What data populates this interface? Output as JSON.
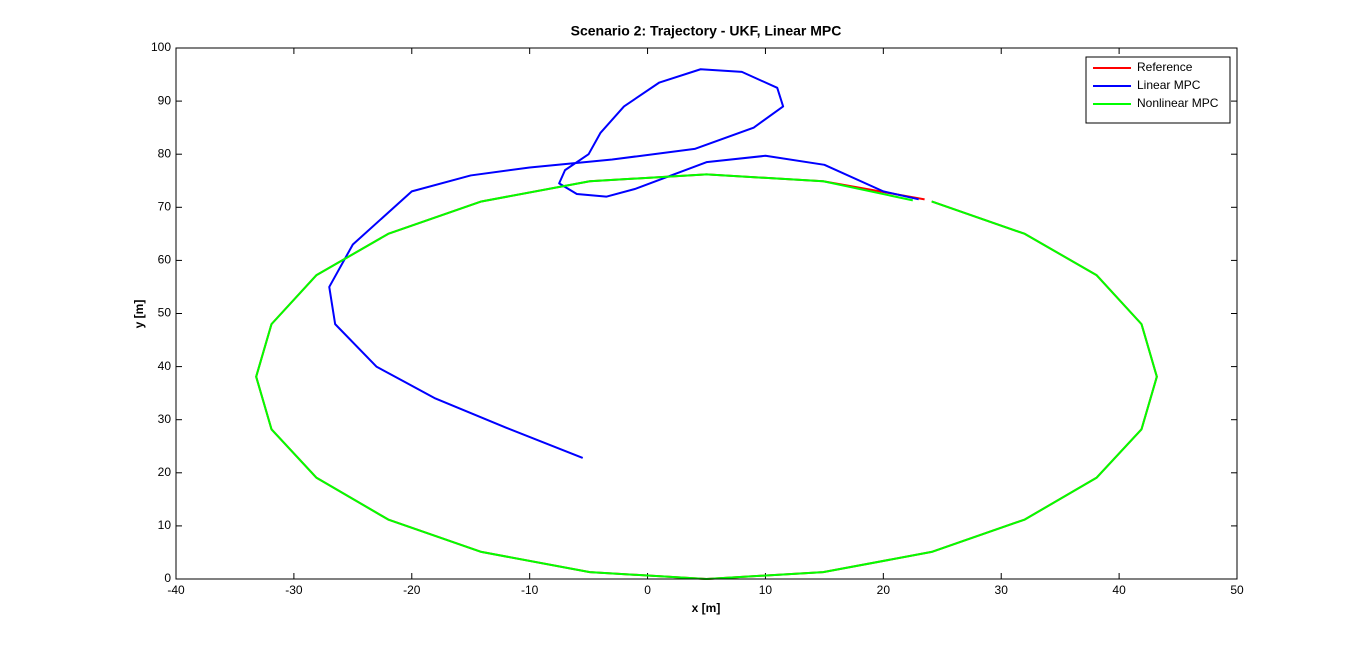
{
  "chart_data": {
    "type": "line",
    "title": "Scenario 2: Trajectory - UKF, Linear MPC",
    "x_label": "x [m]",
    "y_label": "y [m]",
    "xlim": [
      -40,
      50
    ],
    "xticks": [
      -40,
      -30,
      -20,
      -10,
      0,
      10,
      20,
      30,
      40,
      50
    ],
    "ylim": [
      0,
      100
    ],
    "yticks": [
      0,
      10,
      20,
      30,
      40,
      50,
      60,
      70,
      80,
      90,
      100
    ],
    "grid": false,
    "legend": "northeast",
    "series": [
      {
        "name": "Reference",
        "color": "#ff0000",
        "x": [
          23.5,
          14.9,
          5,
          -4.9,
          -14.1,
          -22.0,
          -28.1,
          -31.9,
          -33.2,
          -31.9,
          -28.1,
          -22.0,
          -14.1,
          -4.9,
          5,
          14.9,
          24.1,
          32.0,
          38.1,
          41.9,
          43.2,
          41.9,
          38.1,
          32.0,
          24.1
        ],
        "values": [
          71.5,
          74.9,
          76.2,
          74.9,
          71.1,
          65.0,
          57.2,
          48.0,
          38.1,
          28.2,
          19.1,
          11.2,
          5.1,
          1.3,
          0,
          1.3,
          5.1,
          11.2,
          19.1,
          28.2,
          38.1,
          48.0,
          57.2,
          65.0,
          71.1
        ]
      },
      {
        "name": "Linear MPC",
        "color": "#0000ff",
        "x": [
          23,
          20,
          15,
          10,
          5,
          2,
          -1,
          -3.5,
          -6,
          -7.5,
          -7,
          -5,
          -4,
          -2,
          1,
          4.5,
          8,
          11,
          11.5,
          9,
          4,
          -3,
          -10,
          -15,
          -20,
          -25,
          -27,
          -26.5,
          -23,
          -18,
          -12,
          -5.5
        ],
        "values": [
          71.5,
          73,
          78,
          79.7,
          78.5,
          76,
          73.5,
          72,
          72.5,
          74.5,
          77,
          80,
          84,
          89,
          93.5,
          96,
          95.5,
          92.5,
          89,
          85,
          81,
          79,
          77.5,
          76,
          73,
          63,
          55,
          48,
          40,
          34,
          28.5,
          22.8
        ]
      },
      {
        "name": "Nonlinear MPC",
        "color": "#00ff00",
        "x": [
          22.5,
          14.9,
          5,
          -4.9,
          -14.1,
          -22.0,
          -28.1,
          -31.9,
          -33.2,
          -31.9,
          -28.1,
          -22.0,
          -14.1,
          -4.9,
          5,
          14.9,
          24.1,
          32.0,
          38.1,
          41.9,
          43.2,
          41.9,
          38.1,
          32.0,
          24.1
        ],
        "values": [
          71.3,
          74.9,
          76.2,
          74.9,
          71.1,
          65.0,
          57.2,
          48.0,
          38.1,
          28.2,
          19.1,
          11.2,
          5.1,
          1.3,
          0,
          1.3,
          5.1,
          11.2,
          19.1,
          28.2,
          38.1,
          48.0,
          57.2,
          65.0,
          71.1
        ]
      }
    ]
  }
}
